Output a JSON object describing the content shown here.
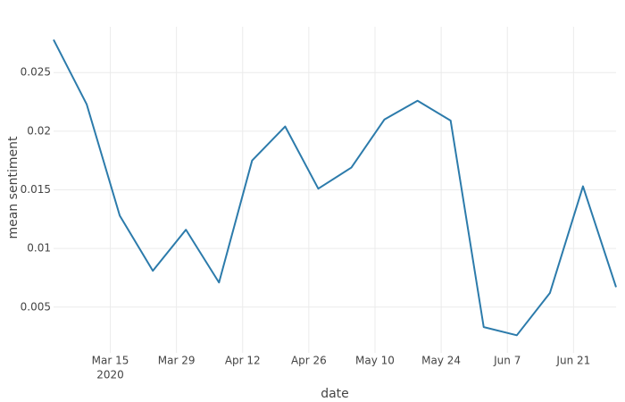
{
  "chart_data": {
    "type": "line",
    "x_label": "date",
    "y_label": "mean sentiment",
    "x": [
      "2020-03-03",
      "2020-03-10",
      "2020-03-17",
      "2020-03-24",
      "2020-03-31",
      "2020-04-07",
      "2020-04-14",
      "2020-04-21",
      "2020-04-28",
      "2020-05-05",
      "2020-05-12",
      "2020-05-19",
      "2020-05-26",
      "2020-06-02",
      "2020-06-09",
      "2020-06-16",
      "2020-06-23",
      "2020-06-30"
    ],
    "series": [
      {
        "name": "mean sentiment",
        "color": "#2c7bab",
        "values": [
          0.0278,
          0.0223,
          0.0128,
          0.0081,
          0.0116,
          0.0071,
          0.0175,
          0.0204,
          0.0151,
          0.0169,
          0.021,
          0.0226,
          0.0209,
          0.0033,
          0.0026,
          0.0062,
          0.0153,
          0.0067
        ]
      }
    ],
    "xlim": [
      "2020-03-03",
      "2020-06-30"
    ],
    "xticks": [
      {
        "value": "2020-03-15",
        "label": "Mar 15"
      },
      {
        "value": "2020-03-29",
        "label": "Mar 29"
      },
      {
        "value": "2020-04-12",
        "label": "Apr 12"
      },
      {
        "value": "2020-04-26",
        "label": "Apr 26"
      },
      {
        "value": "2020-05-10",
        "label": "May 10"
      },
      {
        "value": "2020-05-24",
        "label": "May 24"
      },
      {
        "value": "2020-06-07",
        "label": "Jun 7"
      },
      {
        "value": "2020-06-21",
        "label": "Jun 21"
      }
    ],
    "x_year_label": "2020",
    "ylim": [
      0.0011,
      0.0289
    ],
    "yticks": [
      0.005,
      0.01,
      0.015,
      0.02,
      0.025
    ],
    "grid": true
  }
}
